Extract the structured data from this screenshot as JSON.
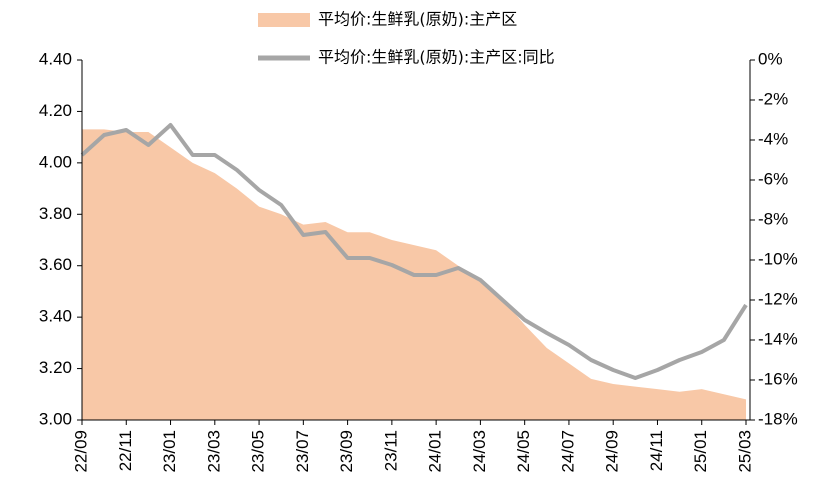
{
  "chart_data": {
    "type": "area-line",
    "categories": [
      "22/09",
      null,
      "22/11",
      null,
      "23/01",
      null,
      "23/03",
      null,
      "23/05",
      null,
      "23/07",
      null,
      "23/09",
      null,
      "23/11",
      null,
      "24/01",
      null,
      "24/03",
      null,
      "24/05",
      null,
      "24/07",
      null,
      "24/09",
      null,
      "24/11",
      null,
      "25/01",
      null,
      "25/03"
    ],
    "series": [
      {
        "name": "平均价:生鲜乳(原奶):主产区",
        "color": "#f8c8a7",
        "kind": "area",
        "values": [
          4.13,
          4.13,
          4.12,
          4.12,
          4.06,
          4.0,
          3.96,
          3.9,
          3.83,
          3.8,
          3.76,
          3.77,
          3.73,
          3.73,
          3.7,
          3.68,
          3.66,
          3.6,
          3.55,
          3.47,
          3.37,
          3.28,
          3.22,
          3.16,
          3.14,
          3.13,
          3.12,
          3.11,
          3.12,
          3.1,
          3.08
        ]
      },
      {
        "name": "平均价:生鲜乳(原奶):主产区:同比",
        "color": "#a6a6a6",
        "kind": "line",
        "axis": "y2",
        "values": [
          -4.75,
          -3.75,
          -3.5,
          -4.25,
          -3.25,
          -4.75,
          -4.75,
          -5.5,
          -6.5,
          -7.25,
          -8.75,
          -8.6,
          -9.9,
          -9.9,
          -10.25,
          -10.75,
          -10.75,
          -10.4,
          -11,
          -12,
          -13,
          -13.65,
          -14.25,
          -15,
          -15.5,
          -15.9,
          -15.5,
          -15,
          -14.6,
          -14,
          -12.25
        ]
      }
    ],
    "ylim": [
      3.0,
      4.4
    ],
    "yticks": [
      {
        "value": 3,
        "label": "3.00"
      },
      {
        "value": 3.2,
        "label": "3.20"
      },
      {
        "value": 3.4,
        "label": "3.40"
      },
      {
        "value": 3.6,
        "label": "3.60"
      },
      {
        "value": 3.8,
        "label": "3.80"
      },
      {
        "value": 4,
        "label": "4.00"
      },
      {
        "value": 4.2,
        "label": "4.20"
      },
      {
        "value": 4.4,
        "label": "4.40"
      }
    ],
    "y2lim": [
      -18,
      0
    ],
    "y2ticks": [
      {
        "value": -18,
        "label": "-18%"
      },
      {
        "value": -16,
        "label": "-16%"
      },
      {
        "value": -14,
        "label": "-14%"
      },
      {
        "value": -12,
        "label": "-12%"
      },
      {
        "value": -10,
        "label": "-10%"
      },
      {
        "value": -8,
        "label": "-8%"
      },
      {
        "value": -6,
        "label": "-6%"
      },
      {
        "value": -4,
        "label": "-4%"
      },
      {
        "value": -2,
        "label": "-2%"
      },
      {
        "value": 0,
        "label": "0%"
      }
    ],
    "grid": false
  }
}
